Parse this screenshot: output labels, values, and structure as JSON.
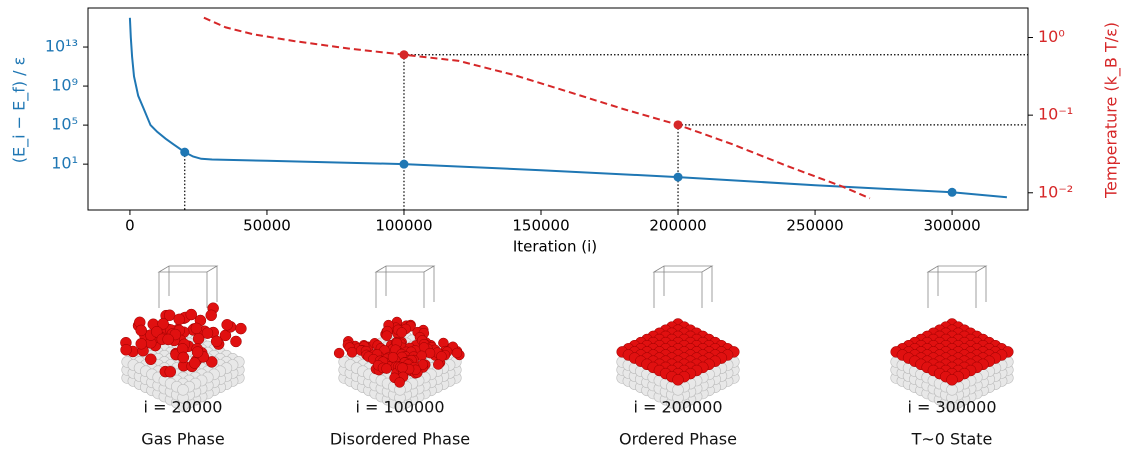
{
  "chart_data": {
    "type": "line",
    "x_label": "Iteration (i)",
    "y_label": "(E_i − E_f) / ε",
    "y2_label": "Temperature (k_B T/ε)",
    "xlim": [
      -15300,
      327700
    ],
    "xticks": [
      0,
      50000,
      100000,
      150000,
      200000,
      250000,
      300000
    ],
    "ylim": [
      0.0002,
      1e+17
    ],
    "y_scale": "log",
    "yticks": [
      {
        "value": 10,
        "label": "10¹"
      },
      {
        "value": 100000,
        "label": "10⁵"
      },
      {
        "value": 1000000000,
        "label": "10⁹"
      },
      {
        "value": 10000000000000,
        "label": "10¹³"
      }
    ],
    "y2lim": [
      0.006,
      2.4
    ],
    "y2_scale": "log",
    "y2ticks": [
      {
        "value": 0.01,
        "label": "10⁻²"
      },
      {
        "value": 0.1,
        "label": "10⁻¹"
      },
      {
        "value": 1,
        "label": "10⁰"
      }
    ],
    "y_color": "#1f77b4",
    "y2_color": "#d62728",
    "series": [
      {
        "color": "#1f77b4",
        "axis": "y",
        "style": "solid",
        "x": [
          0,
          300,
          800,
          1500,
          3000,
          5000,
          7500,
          10000,
          13000,
          16000,
          20000,
          23000,
          26000,
          30000,
          50000,
          100000,
          150000,
          200000,
          250000,
          300000,
          320000
        ],
        "values": [
          1e+16,
          100000000000000.0,
          1000000000000.0,
          10000000000.0,
          100000000.0,
          5000000.0,
          100000.0,
          20000.0,
          4000.0,
          1000.0,
          170,
          60,
          35,
          30,
          22,
          10,
          2.4,
          0.47,
          0.07,
          0.013,
          0.004
        ]
      },
      {
        "color": "#1f77b4",
        "axis": "y",
        "style": "points",
        "x": [
          20000,
          100000,
          200000,
          300000
        ],
        "values": [
          170,
          10,
          0.47,
          0.013
        ]
      },
      {
        "color": "#d62728",
        "axis": "y2",
        "style": "dashed",
        "x": [
          27000,
          35000,
          45000,
          60000,
          80000,
          100000,
          120000,
          140000,
          160000,
          180000,
          200000,
          220000,
          240000,
          260000,
          270000
        ],
        "values": [
          1.8,
          1.35,
          1.1,
          0.9,
          0.72,
          0.6,
          0.5,
          0.33,
          0.2,
          0.12,
          0.075,
          0.042,
          0.022,
          0.012,
          0.0085
        ]
      },
      {
        "color": "#d62728",
        "axis": "y2",
        "style": "points",
        "x": [
          100000,
          200000
        ],
        "values": [
          0.6,
          0.075
        ]
      }
    ],
    "snapshots": [
      {
        "iteration": "i = 20000",
        "phase": "Gas Phase"
      },
      {
        "iteration": "i = 100000",
        "phase": "Disordered Phase"
      },
      {
        "iteration": "i = 200000",
        "phase": "Ordered Phase"
      },
      {
        "iteration": "i = 300000",
        "phase": "T~0 State"
      }
    ]
  }
}
